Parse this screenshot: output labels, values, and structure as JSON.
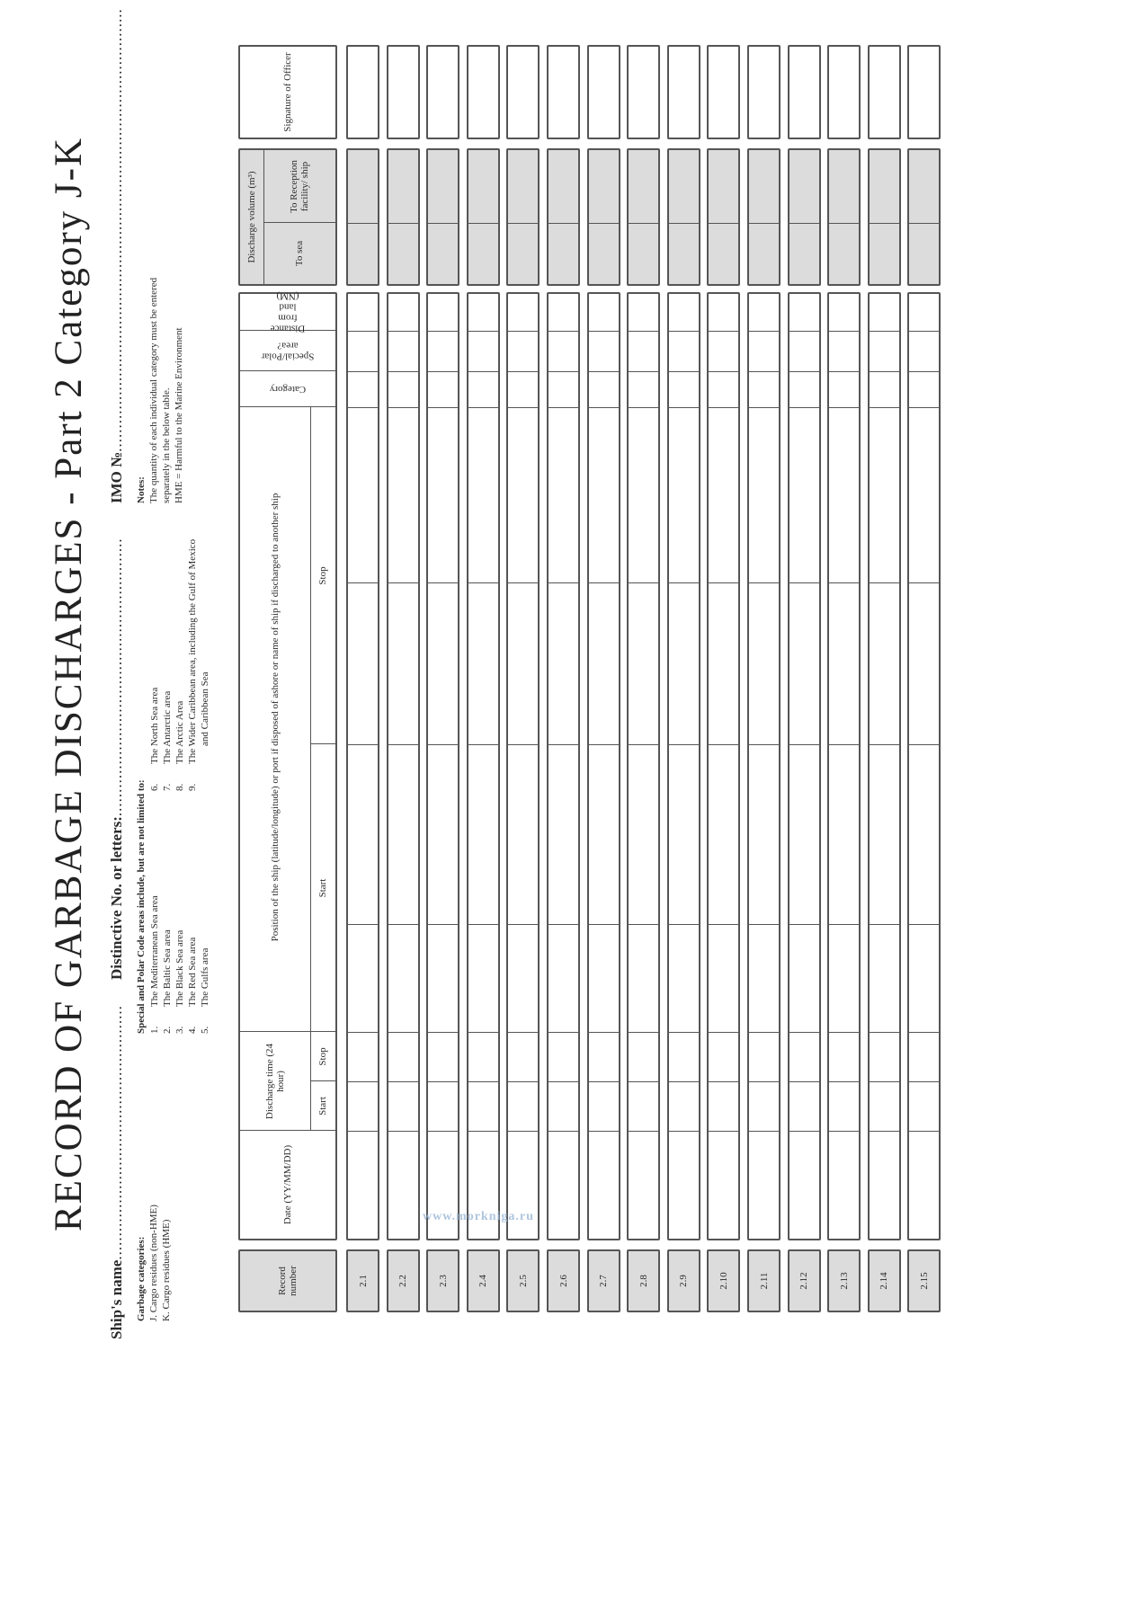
{
  "title": "RECORD OF GARBAGE DISCHARGES - Part 2 Category J-K",
  "fields": {
    "ships_name": "Ship's name",
    "distinctive": "Distinctive No. or letters:",
    "imo": "IMO №",
    "ships_name_dots": "......................................................",
    "distinctive_dots": "...........................................................",
    "imo_dots": ".............................................................................................."
  },
  "garbage_categories": {
    "heading": "Garbage categories:",
    "items": [
      "J. Cargo residues (non-HME)",
      "K. Cargo residues (HME)"
    ]
  },
  "special_areas": {
    "heading": "Special and Polar Code areas include, but are not limited to:",
    "items": [
      {
        "num": "1.",
        "text": "The Mediterranean Sea area"
      },
      {
        "num": "2.",
        "text": "The Baltic Sea area"
      },
      {
        "num": "3.",
        "text": "The Black Sea area"
      },
      {
        "num": "4.",
        "text": "The Red Sea area"
      },
      {
        "num": "5.",
        "text": "The Gulfs area"
      },
      {
        "num": "6.",
        "text": "The North Sea area"
      },
      {
        "num": "7.",
        "text": "The Antarctic area"
      },
      {
        "num": "8.",
        "text": "The Arctic Area"
      },
      {
        "num": "9.",
        "text": "The Wider Caribbean area, including the Gulf of Mexico"
      },
      {
        "num": "",
        "text": "and Caribbean Sea"
      }
    ]
  },
  "notes": {
    "heading": "Notes:",
    "lines": [
      "The quantity of each individual category must be entered",
      "separately in the below table.",
      "HME = Harmful to the Marine Environment"
    ]
  },
  "table": {
    "headers": {
      "record_number": "Record number",
      "date": "Date (YY/MM/DD)",
      "discharge_time": "Discharge time (24 hour)",
      "start": "Start",
      "stop": "Stop",
      "position": "Position of the ship (latitude/longitude) or port if disposed of ashore or name of ship if discharged to another ship",
      "pos_start": "Start",
      "pos_stop": "Stop",
      "category": "Category",
      "special_area": "Special/Polar area?",
      "distance": "Distance from land (NM)",
      "discharge_volume": "Discharge volume (m³)",
      "to_sea": "To sea",
      "to_reception": "To Reception facility/ ship",
      "signature": "Signature of Officer"
    },
    "rows": [
      "2.1",
      "2.2",
      "2.3",
      "2.4",
      "2.5",
      "2.6",
      "2.7",
      "2.8",
      "2.9",
      "2.10",
      "2.11",
      "2.12",
      "2.13",
      "2.14",
      "2.15"
    ]
  },
  "watermark": "www.morkniga.ru",
  "colors": {
    "line": "#555555",
    "shade": "#dcdcdc"
  }
}
